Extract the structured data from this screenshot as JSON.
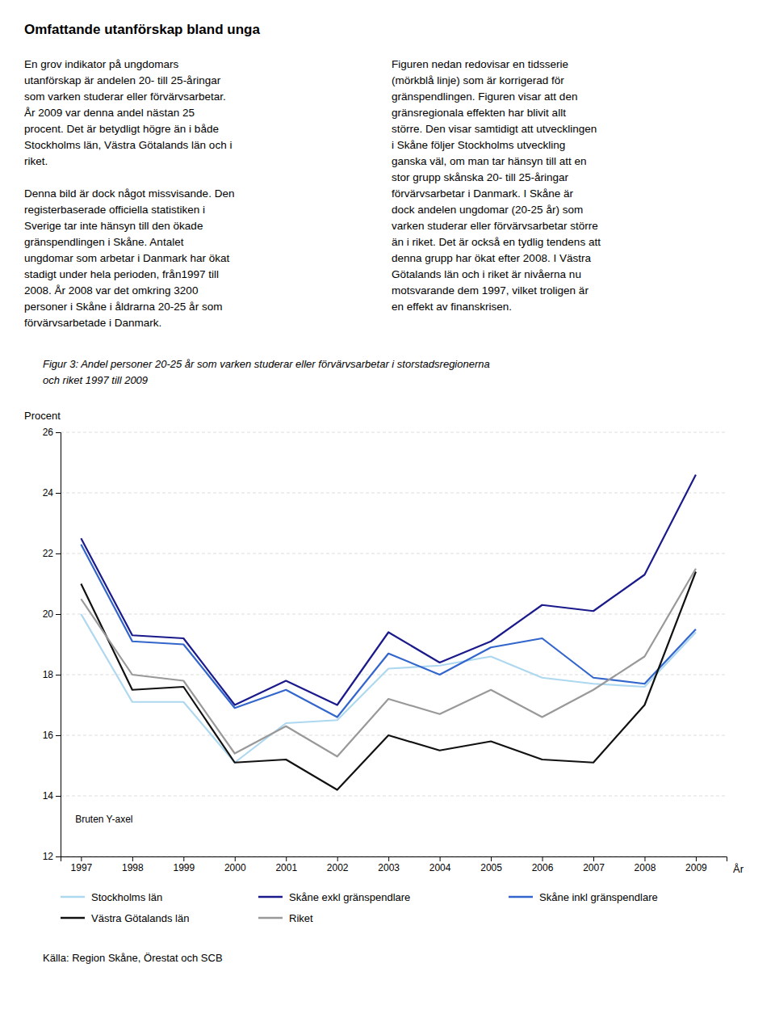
{
  "chart_data": {
    "type": "line",
    "title": "Omfattande utanförskap bland unga",
    "text_left": [
      [
        "En grov indikator på ungdomars",
        "utanförskap är andelen 20- till 25-åringar",
        "som varken studerar eller förvärvsarbetar.",
        "År 2009 var denna andel nästan 25",
        "procent. Det är betydligt högre än i både",
        "Stockholms län, Västra Götalands län och i",
        "riket."
      ],
      [
        "Denna bild är dock något missvisande. Den",
        "registerbaserade officiella statistiken i",
        "Sverige tar inte hänsyn till den ökade",
        "gränspendlingen i Skåne. Antalet",
        "ungdomar som arbetar i Danmark har ökat",
        "stadigt under hela perioden, från1997 till",
        "2008. År 2008 var det omkring 3200",
        "personer i Skåne i åldrarna 20-25 år som",
        "förvärvsarbetade i Danmark."
      ]
    ],
    "text_right": [
      [
        "Figuren nedan redovisar en tidsserie",
        "(mörkblå linje) som är korrigerad för",
        "gränspendlingen. Figuren visar att den",
        "gränsregionala effekten har blivit allt",
        "större. Den visar samtidigt att utvecklingen",
        "i Skåne följer Stockholms utveckling",
        "ganska väl, om man tar hänsyn till att en",
        "stor grupp skånska 20- till 25-åringar",
        "förvärvsarbetar i Danmark.  I Skåne är",
        "dock andelen ungdomar (20-25 år) som",
        "varken studerar eller förvärvsarbetar större",
        "än i riket. Det är också en tydlig tendens att",
        "denna grupp har ökat efter 2008. I Västra",
        "Götalands län och i riket är nivåerna nu",
        "motsvarande dem 1997, vilket troligen är",
        "en effekt av finanskrisen."
      ]
    ],
    "caption": [
      "Figur 3: Andel personer 20-25 år som varken studerar eller förvärvsarbetar i storstadsregionerna",
      "och riket 1997 till 2009"
    ],
    "ylabel": "Procent",
    "xlabel": "År",
    "annotation": "Bruten Y-axel",
    "source": "Källa: Region Skåne, Örestat och SCB",
    "x": [
      1997,
      1998,
      1999,
      2000,
      2001,
      2002,
      2003,
      2004,
      2005,
      2006,
      2007,
      2008,
      2009
    ],
    "xlim": [
      1996.6,
      2009.6
    ],
    "xticks": [
      1997,
      1998,
      1999,
      2000,
      2001,
      2002,
      2003,
      2004,
      2005,
      2006,
      2007,
      2008,
      2009
    ],
    "ylim": [
      12,
      26
    ],
    "yticks": [
      12,
      14,
      16,
      18,
      20,
      22,
      24,
      26
    ],
    "grid": true,
    "legend": "bottom",
    "series": [
      {
        "name": "Stockholms län",
        "color": "#add8f0",
        "values": [
          20.0,
          17.1,
          17.1,
          15.1,
          16.4,
          16.5,
          18.2,
          18.3,
          18.6,
          17.9,
          17.7,
          17.6,
          19.4
        ]
      },
      {
        "name": "Skåne exkl gränspendlare",
        "color": "#1a1a8c",
        "values": [
          22.5,
          19.3,
          19.2,
          17.0,
          17.8,
          17.0,
          19.4,
          18.4,
          19.1,
          20.3,
          20.1,
          21.3,
          24.6
        ]
      },
      {
        "name": "Skåne inkl gränspendlare",
        "color": "#3366cc",
        "values": [
          22.3,
          19.1,
          19.0,
          16.9,
          17.5,
          16.6,
          18.7,
          18.0,
          18.9,
          19.2,
          17.9,
          17.7,
          19.5
        ]
      },
      {
        "name": "Västra Götalands län",
        "color": "#111111",
        "values": [
          21.0,
          17.5,
          17.6,
          15.1,
          15.2,
          14.2,
          16.0,
          15.5,
          15.8,
          15.2,
          15.1,
          17.0,
          21.4
        ]
      },
      {
        "name": "Riket",
        "color": "#999999",
        "values": [
          20.5,
          18.0,
          17.8,
          15.4,
          16.3,
          15.3,
          17.2,
          16.7,
          17.5,
          16.6,
          17.5,
          18.6,
          21.5
        ]
      }
    ]
  }
}
